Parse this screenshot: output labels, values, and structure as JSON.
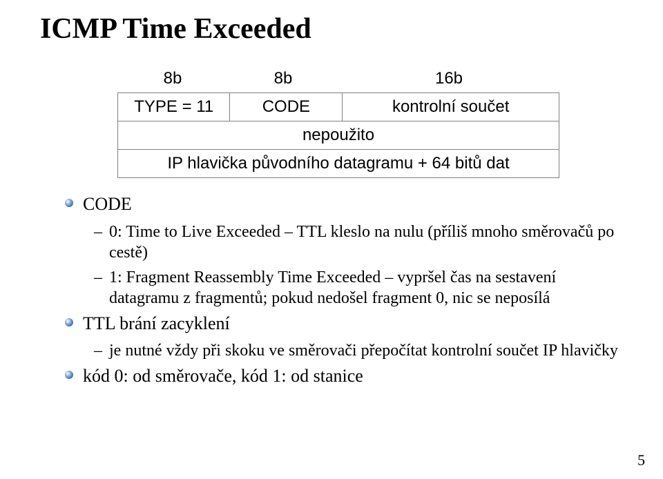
{
  "title": "ICMP Time Exceeded",
  "diagram": {
    "widths": {
      "col1": "8b",
      "col2": "8b",
      "col3": "16b"
    },
    "row1": {
      "type": "TYPE = 11",
      "code": "CODE",
      "cksum": "kontrolní součet"
    },
    "row2": "nepoužito",
    "row3": "IP hlavička původního datagramu + 64 bitů dat"
  },
  "bullets": {
    "code_label": "CODE",
    "code_items": [
      "0: Time to Live Exceeded – TTL kleslo na nulu (příliš mnoho směrovačů po cestě)",
      "1: Fragment Reassembly Time Exceeded – vypršel čas na sestavení datagramu z fragmentů; pokud nedošel fragment 0, nic se neposílá"
    ],
    "ttl_label": "TTL brání zacyklení",
    "ttl_items": [
      "je nutné vždy při skoku ve směrovači přepočítat kontrolní součet IP hlavičky"
    ],
    "last": "kód 0: od směrovače, kód 1: od stanice"
  },
  "page_number": "5",
  "colors": {
    "text": "#000000",
    "border": "#808080",
    "background": "#ffffff"
  }
}
